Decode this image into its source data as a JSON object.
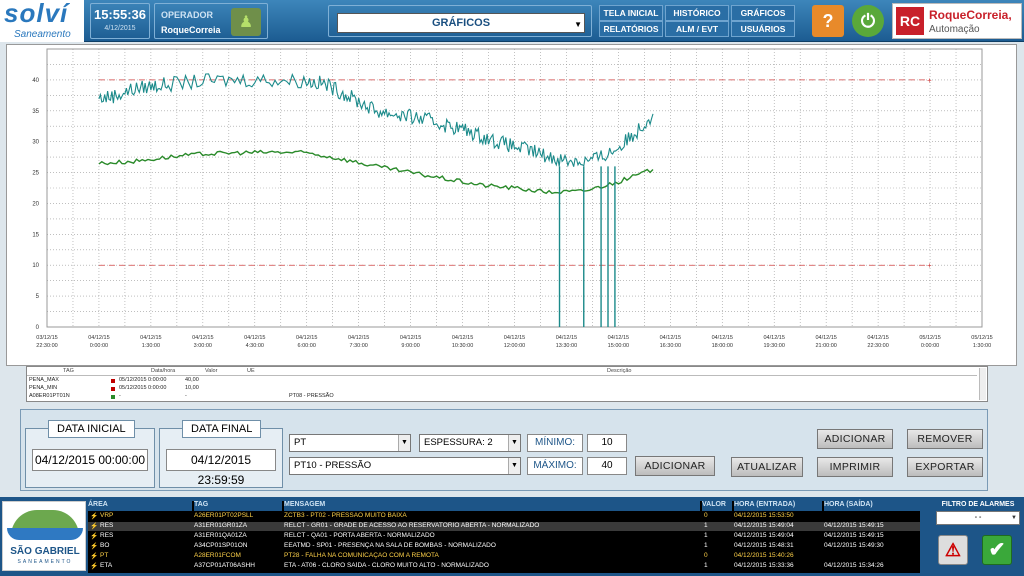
{
  "header": {
    "logo_text": "solví",
    "logo_sub": "Saneamento",
    "clock_time": "15:55:36",
    "clock_date": "4/12/2015",
    "operator_label": "OPERADOR",
    "operator_name": "RoqueCorreia",
    "page_select": "GRÁFICOS",
    "nav": {
      "tela_inicial": "TELA INICIAL",
      "historico": "HISTÓRICO",
      "graficos": "GRÁFICOS",
      "relatorios": "RELATÓRIOS",
      "alm_evt": "ALM / EVT",
      "usuarios": "USUÁRIOS"
    },
    "vendor_name": "RoqueCorreia,",
    "vendor_sub": "Automação",
    "vendor_mark": "RC"
  },
  "chart_data": {
    "type": "line",
    "x_tick_labels": [
      [
        "03/12/15",
        "22:30:00"
      ],
      [
        "04/12/15",
        "0:00:00"
      ],
      [
        "04/12/15",
        "1:30:00"
      ],
      [
        "04/12/15",
        "3:00:00"
      ],
      [
        "04/12/15",
        "4:30:00"
      ],
      [
        "04/12/15",
        "6:00:00"
      ],
      [
        "04/12/15",
        "7:30:00"
      ],
      [
        "04/12/15",
        "9:00:00"
      ],
      [
        "04/12/15",
        "10:30:00"
      ],
      [
        "04/12/15",
        "12:00:00"
      ],
      [
        "04/12/15",
        "13:30:00"
      ],
      [
        "04/12/15",
        "15:00:00"
      ],
      [
        "04/12/15",
        "16:30:00"
      ],
      [
        "04/12/15",
        "18:00:00"
      ],
      [
        "04/12/15",
        "19:30:00"
      ],
      [
        "04/12/15",
        "21:00:00"
      ],
      [
        "04/12/15",
        "22:30:00"
      ],
      [
        "05/12/15",
        "0:00:00"
      ],
      [
        "05/12/15",
        "1:30:00"
      ]
    ],
    "xlim_hours": [
      -1.5,
      25.5
    ],
    "ylim": [
      0,
      45
    ],
    "y_ticks": [
      0,
      5,
      10,
      15,
      20,
      25,
      30,
      35,
      40
    ],
    "grid": true,
    "series": [
      {
        "name": "PENA_MAX",
        "color": "#d04040",
        "style": "dashed",
        "x": [
          0,
          24
        ],
        "y": [
          40,
          40
        ]
      },
      {
        "name": "PENA_MIN",
        "color": "#d04040",
        "style": "dashed",
        "x": [
          0,
          24
        ],
        "y": [
          10,
          10
        ]
      },
      {
        "name": "PT10 - PRESSÃO (cyan)",
        "color": "#1b8a8a",
        "x": [
          0,
          0.5,
          1,
          1.5,
          2,
          3,
          4,
          5,
          6,
          6.5,
          7,
          7.5,
          8,
          8.5,
          9,
          9.5,
          10,
          10.5,
          11,
          11.5,
          12,
          12.5,
          13,
          13.5,
          14,
          14.5,
          15,
          15.5,
          16
        ],
        "y": [
          37,
          37.5,
          38.5,
          39,
          39.3,
          39.8,
          40,
          40,
          39.8,
          39.4,
          38,
          36.5,
          35,
          34.5,
          34,
          33.5,
          32.7,
          32,
          31,
          30,
          29.2,
          28.5,
          27.5,
          27,
          26.8,
          27.5,
          29,
          31.5,
          34.5
        ]
      },
      {
        "name": "A08ER01PT01N",
        "color": "#2a8a2a",
        "x": [
          0,
          1,
          2,
          3,
          4,
          5,
          6,
          7,
          8,
          9,
          10,
          11,
          12,
          13,
          14,
          15,
          16
        ],
        "y": [
          26.5,
          26.8,
          27.5,
          28,
          28.2,
          28.3,
          28.2,
          27.2,
          26,
          25,
          24,
          23,
          22.5,
          21.8,
          22,
          23.5,
          25.5
        ]
      }
    ],
    "drops_hours": [
      13.3,
      14,
      14.5,
      14.7,
      14.9
    ]
  },
  "legend": {
    "headers": [
      "TAG",
      "Data/hora",
      "Valor",
      "UE",
      "Descrição"
    ],
    "rows": [
      {
        "tag": "PENA_MAX",
        "color": "#c00000",
        "time": "05/12/2015 0:00:00",
        "value": "40,00",
        "unit": "",
        "desc": ""
      },
      {
        "tag": "PENA_MIN",
        "color": "#c00000",
        "time": "05/12/2015 0:00:00",
        "value": "10,00",
        "unit": "",
        "desc": ""
      },
      {
        "tag": "A08ER01PT01N",
        "color": "#2a8a2a",
        "time": "-",
        "value": "-",
        "unit": "",
        "desc": "PT08 - PRESSÃO"
      }
    ]
  },
  "controls": {
    "data_inicial_label": "DATA INICIAL",
    "data_inicial": "04/12/2015 00:00:00",
    "data_final_label": "DATA FINAL",
    "data_final": "04/12/2015 23:59:59",
    "type_select": "PT",
    "tag_select": "PT10 - PRESSÃO",
    "espessura": "ESPESSURA: 2",
    "minimo_label": "MÍNIMO:",
    "minimo": "10",
    "maximo_label": "MÁXIMO:",
    "maximo": "40",
    "adicionar_left": "ADICIONAR",
    "atualizar": "ATUALIZAR",
    "adicionar": "ADICIONAR",
    "remover": "REMOVER",
    "imprimir": "IMPRIMIR",
    "exportar": "EXPORTAR"
  },
  "alarms": {
    "logo_name": "SÃO GABRIEL",
    "logo_sub": "SANEAMENTO",
    "headers": [
      "ÁREA",
      "TAG",
      "MENSAGEM",
      "VALOR",
      "HORA (ENTRADA)",
      "HORA (SAÍDA)"
    ],
    "filter_label": "FILTRO DE ALARMES",
    "filter_value": "- -",
    "rows": [
      {
        "area": "VRP",
        "tag": "A26ER01PT02PSLL",
        "msg": "ZCTB3 - PT02 - PRESSÃO MUITO BAIXA",
        "val": "0",
        "in": "04/12/2015 15:53:50",
        "out": "",
        "color": "#ffd24a",
        "bg": "#000"
      },
      {
        "area": "RES",
        "tag": "A31ER01GR01ZA",
        "msg": "RELCT - GR01 - GRADE DE ACESSO AO RESERVATÓRIO ABERTA - NORMALIZADO",
        "val": "1",
        "in": "04/12/2015 15:49:04",
        "out": "04/12/2015 15:49:15",
        "color": "#ffffff",
        "bg": "#3a3a3a"
      },
      {
        "area": "RES",
        "tag": "A31ER01QA01ZA",
        "msg": "RELCT - QA01 - PORTA ABERTA - NORMALIZADO",
        "val": "1",
        "in": "04/12/2015 15:49:04",
        "out": "04/12/2015 15:49:15",
        "color": "#ffffff",
        "bg": "#000"
      },
      {
        "area": "BO",
        "tag": "A34CP01SP01ON",
        "msg": "EEATMD - SP01 - PRESENÇA NA SALA DE BOMBAS - NORMALIZADO",
        "val": "1",
        "in": "04/12/2015 15:48:31",
        "out": "04/12/2015 15:49:30",
        "color": "#ffffff",
        "bg": "#000"
      },
      {
        "area": "PT",
        "tag": "A28ER01FCOM",
        "msg": "PT28 - FALHA NA COMUNICAÇÃO COM A REMOTA",
        "val": "0",
        "in": "04/12/2015 15:40:26",
        "out": "",
        "color": "#ffd24a",
        "bg": "#000"
      },
      {
        "area": "ETA",
        "tag": "A37CP01AT06ASHH",
        "msg": "ETA - AT06 - CLORO SAÍDA - CLORO MUITO ALTO - NORMALIZADO",
        "val": "1",
        "in": "04/12/2015 15:33:36",
        "out": "04/12/2015 15:34:26",
        "color": "#ffffff",
        "bg": "#000"
      }
    ]
  }
}
